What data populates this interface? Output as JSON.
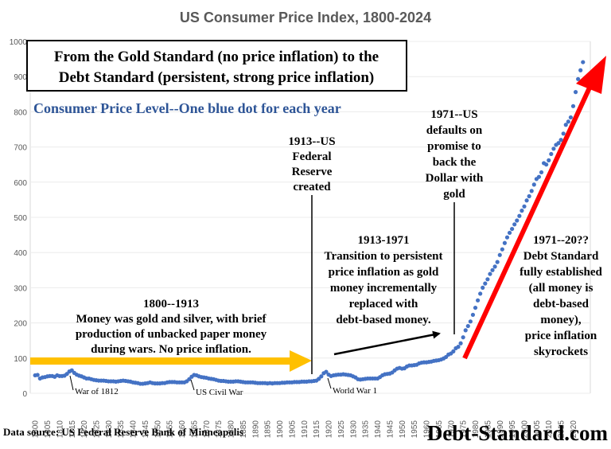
{
  "chart_data": {
    "type": "scatter",
    "title": "US Consumer Price Index, 1800-2024",
    "xlabel": "",
    "ylabel": "",
    "xlim": [
      1798,
      2027
    ],
    "ylim": [
      0,
      1000
    ],
    "y_ticks": [
      "0",
      "100",
      "200",
      "300",
      "400",
      "500",
      "600",
      "700",
      "800",
      "900",
      "1000"
    ],
    "x_ticks": [
      "1800",
      "1805",
      "1810",
      "1815",
      "1820",
      "1825",
      "1830",
      "1835",
      "1840",
      "1845",
      "1850",
      "1855",
      "1860",
      "1865",
      "1870",
      "1875",
      "1880",
      "1885",
      "1890",
      "1895",
      "1900",
      "1905",
      "1910",
      "1915",
      "1920",
      "1925",
      "1930",
      "1935",
      "1940",
      "1945",
      "1950",
      "1955",
      "1960",
      "1965",
      "1970",
      "1975",
      "1980",
      "1985",
      "1990",
      "1995",
      "2000",
      "2005",
      "2010",
      "2015",
      "2020"
    ],
    "dot_color": "#4472C4",
    "series": [
      {
        "name": "Consumer Price Level",
        "x_start": 1800,
        "x_step": 1,
        "values": [
          51,
          52,
          42,
          45,
          46,
          48,
          49,
          49,
          47,
          51,
          49,
          49,
          50,
          55,
          62,
          65,
          58,
          53,
          50,
          48,
          45,
          42,
          42,
          40,
          38,
          37,
          36,
          36,
          36,
          35,
          34,
          34,
          34,
          33,
          34,
          35,
          36,
          35,
          34,
          33,
          31,
          30,
          29,
          27,
          27,
          28,
          29,
          31,
          29,
          28,
          28,
          28,
          29,
          29,
          31,
          32,
          32,
          32,
          31,
          31,
          31,
          31,
          34,
          40,
          47,
          52,
          51,
          48,
          46,
          45,
          44,
          42,
          41,
          40,
          38,
          36,
          35,
          35,
          34,
          33,
          33,
          33,
          34,
          34,
          33,
          32,
          31,
          31,
          31,
          31,
          30,
          29,
          29,
          29,
          29,
          28,
          29,
          28,
          29,
          29,
          29,
          30,
          30,
          31,
          31,
          31,
          32,
          32,
          32,
          33,
          33,
          33,
          34,
          34,
          35,
          36,
          41,
          48,
          57,
          61,
          53,
          49,
          51,
          52,
          53,
          53,
          54,
          53,
          52,
          51,
          48,
          45,
          40,
          39,
          40,
          41,
          42,
          42,
          42,
          42,
          42,
          46,
          51,
          54,
          55,
          56,
          59,
          65,
          70,
          72,
          70,
          71,
          76,
          79,
          79,
          80,
          81,
          85,
          87,
          88,
          88,
          89,
          90,
          92,
          93,
          94,
          96,
          99,
          103,
          110,
          113,
          119,
          128,
          132,
          142,
          159,
          179,
          191,
          204,
          223,
          243,
          264,
          283,
          300,
          312,
          324,
          339,
          350,
          360,
          373,
          393,
          409,
          427,
          443,
          456,
          467,
          480,
          491,
          504,
          519,
          531,
          548,
          560,
          575,
          593,
          609,
          615,
          628,
          654,
          650,
          662,
          680,
          695,
          706,
          711,
          720,
          738,
          763,
          772,
          784,
          816,
          856,
          893,
          918,
          941
        ]
      }
    ],
    "annotations": {
      "box_line1": "From the Gold Standard (no price inflation) to the",
      "box_line2": "Debt Standard (persistent, strong price inflation)",
      "subtitle": "Consumer Price Level--One blue dot for each year",
      "fed_lines": [
        "1913--US",
        "Federal",
        "Reserve",
        "created"
      ],
      "default_lines": [
        "1971--US",
        "defaults on",
        "promise to",
        "back the",
        "Dollar with",
        "gold"
      ],
      "gold_lines": [
        "1800--1913",
        "Money was gold and silver, with brief",
        "production of unbacked paper money",
        "during wars. No price inflation."
      ],
      "transition_lines": [
        "1913-1971",
        "Transition to persistent",
        "price inflation as gold",
        "money incrementally",
        "replaced with",
        "debt-based money."
      ],
      "debt_lines": [
        "1971--20??",
        "Debt Standard",
        "fully established",
        "(all money is",
        "debt-based",
        "money),",
        "price inflation",
        "skyrockets"
      ],
      "war_1812": "War of 1812",
      "civil_war": "US Civil War",
      "world_war": "World War 1",
      "source": "Data source: US Federal Reserve Bank of Minneapolis",
      "brand": "Debt-Standard.com"
    }
  }
}
